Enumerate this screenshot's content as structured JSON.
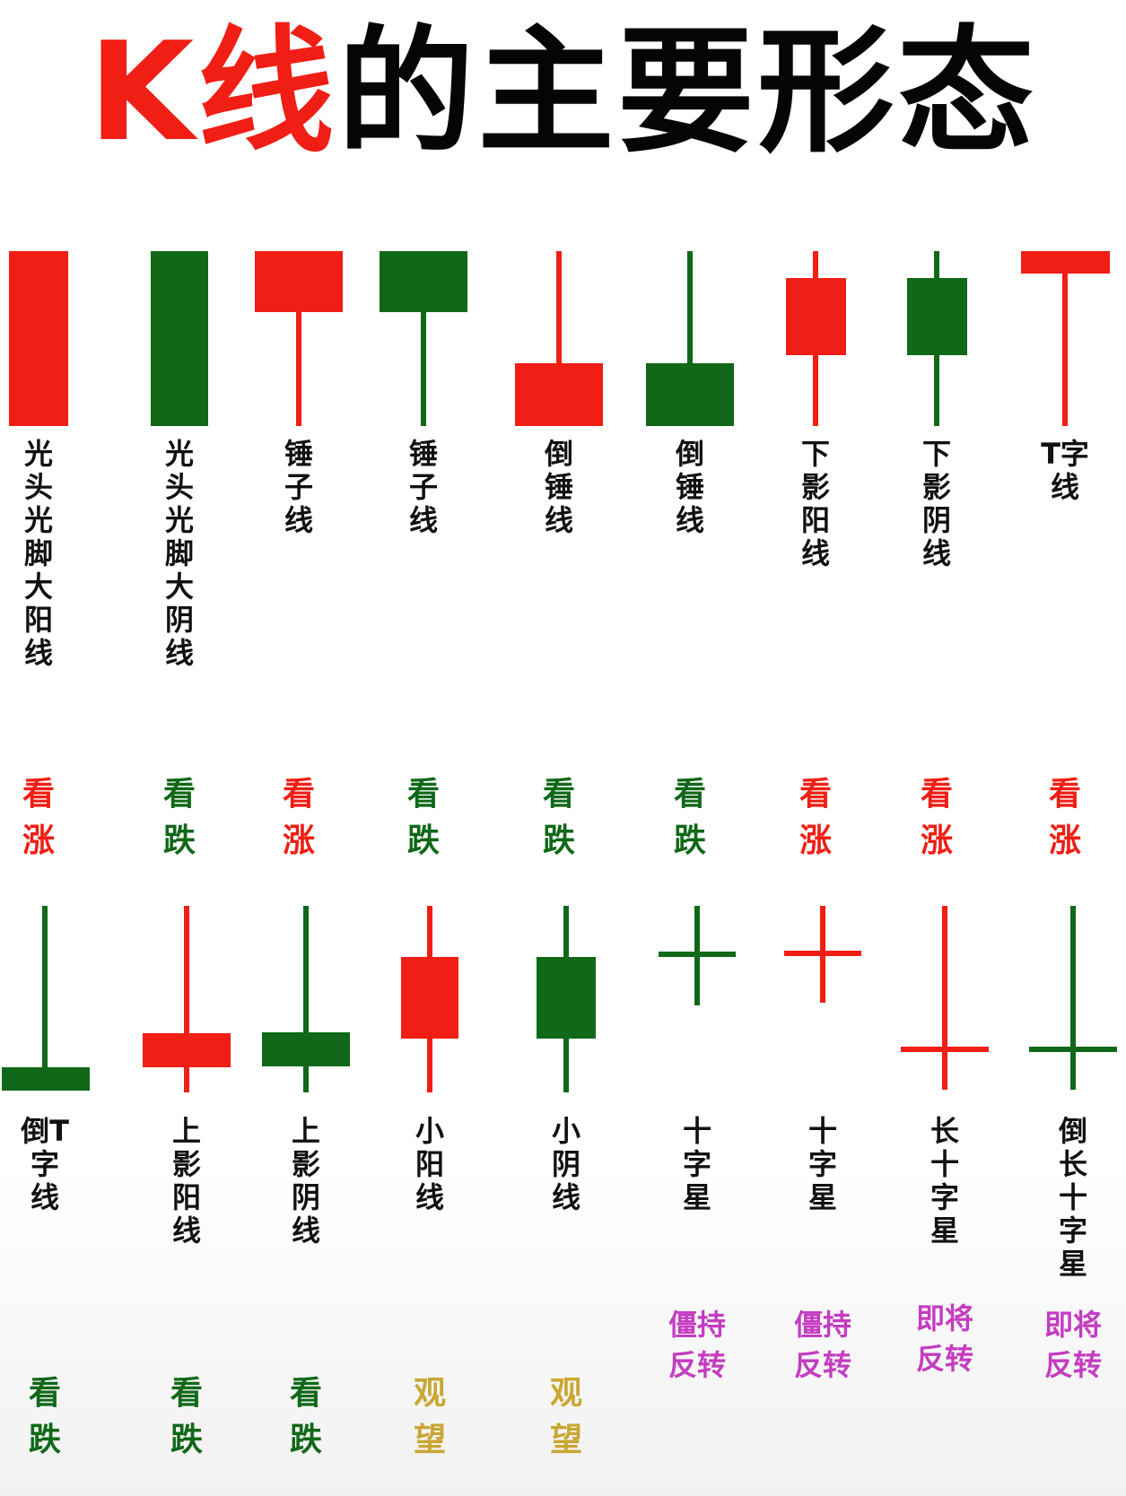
{
  "title": {
    "part1": "K线",
    "part2": "的主要形态"
  },
  "colors": {
    "up": "#f01e14",
    "down": "#106818",
    "neutral": "#c9a733",
    "reversal": "#c43cc0",
    "label": "#111111"
  },
  "row1": [
    {
      "name": "光头光脚大阳线",
      "type": "bar",
      "color": "up",
      "signal": "看涨",
      "signal_color": "up"
    },
    {
      "name": "光头光脚大阴线",
      "type": "bar",
      "color": "down",
      "signal": "看跌",
      "signal_color": "down"
    },
    {
      "name": "锤子线",
      "type": "hammer",
      "color": "up",
      "signal": "看涨",
      "signal_color": "up"
    },
    {
      "name": "锤子线",
      "type": "hammer",
      "color": "down",
      "signal": "看跌",
      "signal_color": "down"
    },
    {
      "name": "倒锤线",
      "type": "inverted_hammer",
      "color": "up",
      "signal": "看跌",
      "signal_color": "down"
    },
    {
      "name": "倒锤线",
      "type": "inverted_hammer",
      "color": "down",
      "signal": "看跌",
      "signal_color": "down"
    },
    {
      "name": "下影阳线",
      "type": "long_lower_shadow",
      "color": "up",
      "signal": "看涨",
      "signal_color": "up"
    },
    {
      "name": "下影阴线",
      "type": "long_lower_shadow",
      "color": "down",
      "signal": "看涨",
      "signal_color": "up"
    },
    {
      "name": "T字线",
      "type": "t_line",
      "color": "up",
      "signal": "看涨",
      "signal_color": "up"
    }
  ],
  "row2": [
    {
      "name": "倒T字线",
      "type": "inverted_t",
      "color": "down",
      "signal": "看跌",
      "signal_color": "down"
    },
    {
      "name": "上影阳线",
      "type": "long_upper_shadow",
      "color": "up",
      "signal": "看跌",
      "signal_color": "down"
    },
    {
      "name": "上影阴线",
      "type": "long_upper_shadow",
      "color": "down",
      "signal": "看跌",
      "signal_color": "down"
    },
    {
      "name": "小阳线",
      "type": "small",
      "color": "up",
      "signal": "观望",
      "signal_color": "neutral"
    },
    {
      "name": "小阴线",
      "type": "small",
      "color": "down",
      "signal": "观望",
      "signal_color": "neutral"
    },
    {
      "name": "十字星",
      "type": "doji",
      "color": "down",
      "signal": "僵持反转",
      "signal_color": "reversal"
    },
    {
      "name": "十字星",
      "type": "doji",
      "color": "up",
      "signal": "僵持反转",
      "signal_color": "reversal"
    },
    {
      "name": "长十字星",
      "type": "long_doji",
      "color": "up",
      "signal": "即将反转",
      "signal_color": "reversal"
    },
    {
      "name": "倒长十字星",
      "type": "inverted_long_doji",
      "color": "down",
      "signal": "即将反转",
      "signal_color": "reversal"
    }
  ]
}
